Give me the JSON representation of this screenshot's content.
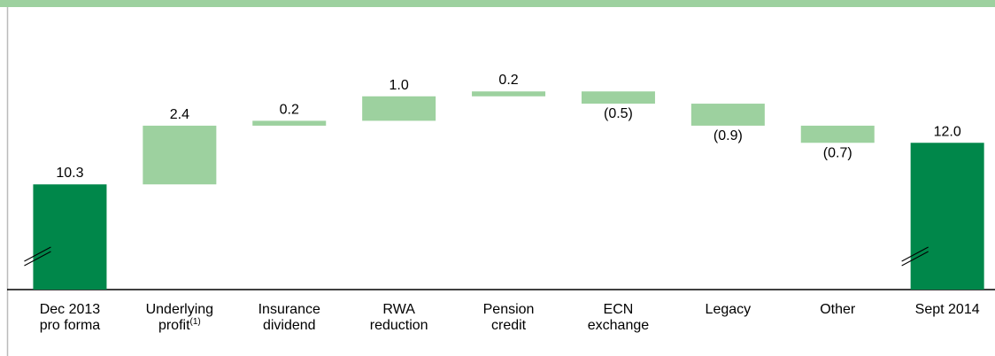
{
  "chart_data": {
    "type": "waterfall",
    "categories": [
      [
        "Dec 2013",
        "pro forma"
      ],
      [
        "Underlying",
        "profit"
      ],
      [
        "Insurance",
        "dividend"
      ],
      [
        "RWA",
        "reduction"
      ],
      [
        "Pension",
        "credit"
      ],
      [
        "ECN",
        "exchange"
      ],
      [
        "Legacy"
      ],
      [
        "Other"
      ],
      [
        "Sept 2014"
      ]
    ],
    "category_notes": [
      null,
      "(1)",
      null,
      null,
      null,
      null,
      null,
      null,
      null
    ],
    "values": [
      10.3,
      2.4,
      0.2,
      1.0,
      0.2,
      -0.5,
      -0.9,
      -0.7,
      12.0
    ],
    "value_labels": [
      "10.3",
      "2.4",
      "0.2",
      "1.0",
      "0.2",
      "(0.5)",
      "(0.9)",
      "(0.7)",
      "12.0"
    ],
    "totals": [
      0,
      8
    ],
    "total_color": "#00874a",
    "color": "#9dd19f",
    "ylim": [
      6,
      14
    ]
  }
}
